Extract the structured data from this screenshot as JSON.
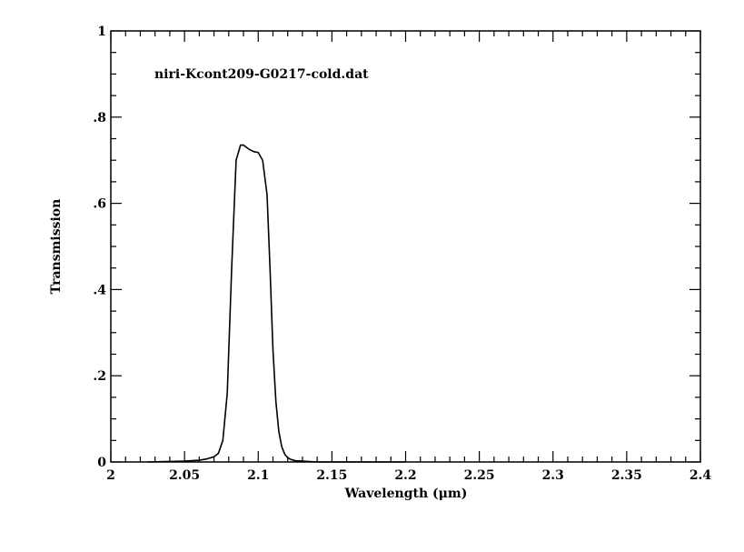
{
  "chart_data": {
    "type": "line",
    "title": "",
    "annotation": "niri-Kcont209-G0217-cold.dat",
    "xlabel": "Wavelength (μm)",
    "ylabel": "Transmission",
    "xlim": [
      2.0,
      2.4
    ],
    "ylim": [
      0,
      1
    ],
    "x_ticks": [
      2.0,
      2.05,
      2.1,
      2.15,
      2.2,
      2.25,
      2.3,
      2.35,
      2.4
    ],
    "x_tick_labels": [
      "2",
      "2.05",
      "2.1",
      "2.15",
      "2.2",
      "2.25",
      "2.3",
      "2.35",
      "2.4"
    ],
    "y_ticks": [
      0,
      0.2,
      0.4,
      0.6,
      0.8,
      1.0
    ],
    "y_tick_labels": [
      "0",
      ".2",
      ".4",
      ".6",
      ".8",
      "1"
    ],
    "x_minor_step": 0.01,
    "y_minor_step": 0.05,
    "grid": false,
    "color": "#000000",
    "series": [
      {
        "x": [
          2.025,
          2.05,
          2.06,
          2.065,
          2.07,
          2.073,
          2.076,
          2.079,
          2.082,
          2.085,
          2.088,
          2.09,
          2.092,
          2.094,
          2.097,
          2.1,
          2.103,
          2.106,
          2.108,
          2.11,
          2.112,
          2.114,
          2.116,
          2.118,
          2.12,
          2.122,
          2.125,
          2.13,
          2.14,
          2.15,
          2.16,
          2.2
        ],
        "y": [
          0.0,
          0.002,
          0.004,
          0.007,
          0.012,
          0.02,
          0.05,
          0.16,
          0.45,
          0.7,
          0.735,
          0.735,
          0.73,
          0.725,
          0.72,
          0.718,
          0.7,
          0.62,
          0.45,
          0.26,
          0.14,
          0.07,
          0.035,
          0.018,
          0.01,
          0.006,
          0.003,
          0.002,
          0.0,
          0.0,
          0.0,
          0.0
        ]
      }
    ]
  }
}
